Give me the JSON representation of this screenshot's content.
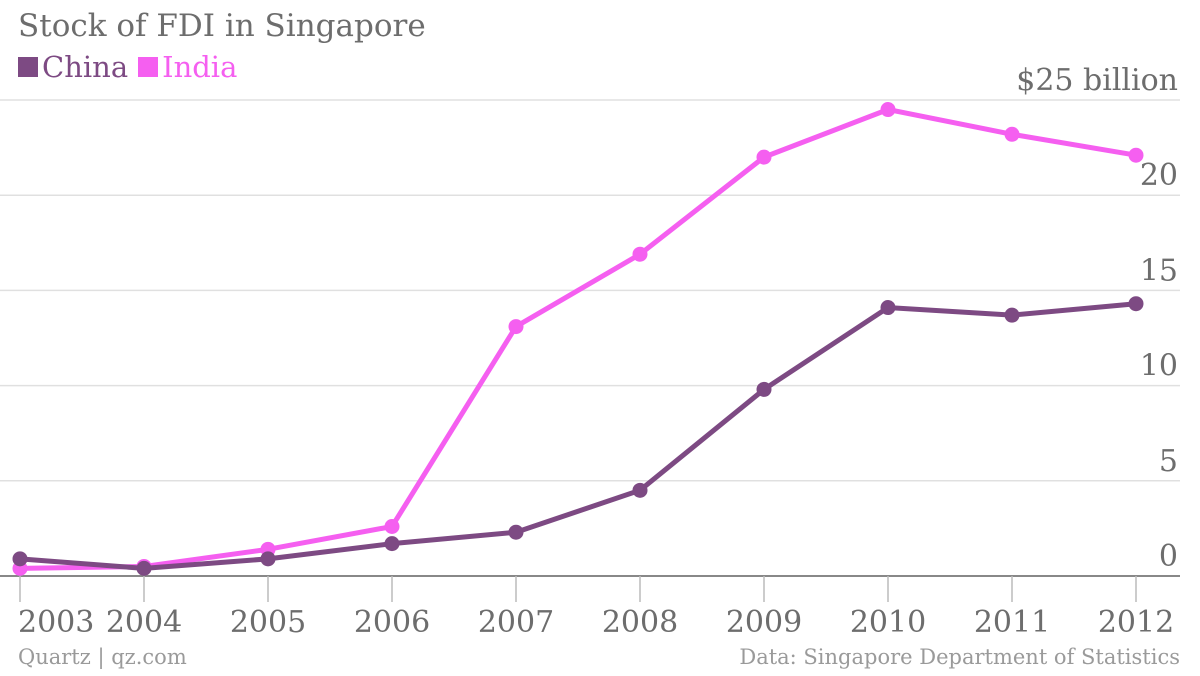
{
  "chart_data": {
    "type": "line",
    "title": "Stock of FDI in Singapore",
    "x": [
      "2003",
      "2004",
      "2005",
      "2006",
      "2007",
      "2008",
      "2009",
      "2010",
      "2011",
      "2012"
    ],
    "series": [
      {
        "name": "China",
        "color": "#7d4a83",
        "values": [
          0.9,
          0.4,
          0.9,
          1.7,
          2.3,
          4.5,
          9.8,
          14.1,
          13.7,
          14.3
        ]
      },
      {
        "name": "India",
        "color": "#f55ff0",
        "values": [
          0.4,
          0.5,
          1.4,
          2.6,
          13.1,
          16.9,
          22.0,
          24.5,
          23.2,
          22.1
        ]
      }
    ],
    "yticks": [
      "0",
      "5",
      "10",
      "15",
      "20",
      "$25 billion"
    ],
    "ytick_values": [
      0,
      5,
      10,
      15,
      20,
      25
    ],
    "ylim": [
      0,
      25
    ],
    "legend_position": "top-left",
    "grid": true
  },
  "footer": {
    "credit": "Quartz | qz.com",
    "source": "Data: Singapore Department of Statistics"
  }
}
